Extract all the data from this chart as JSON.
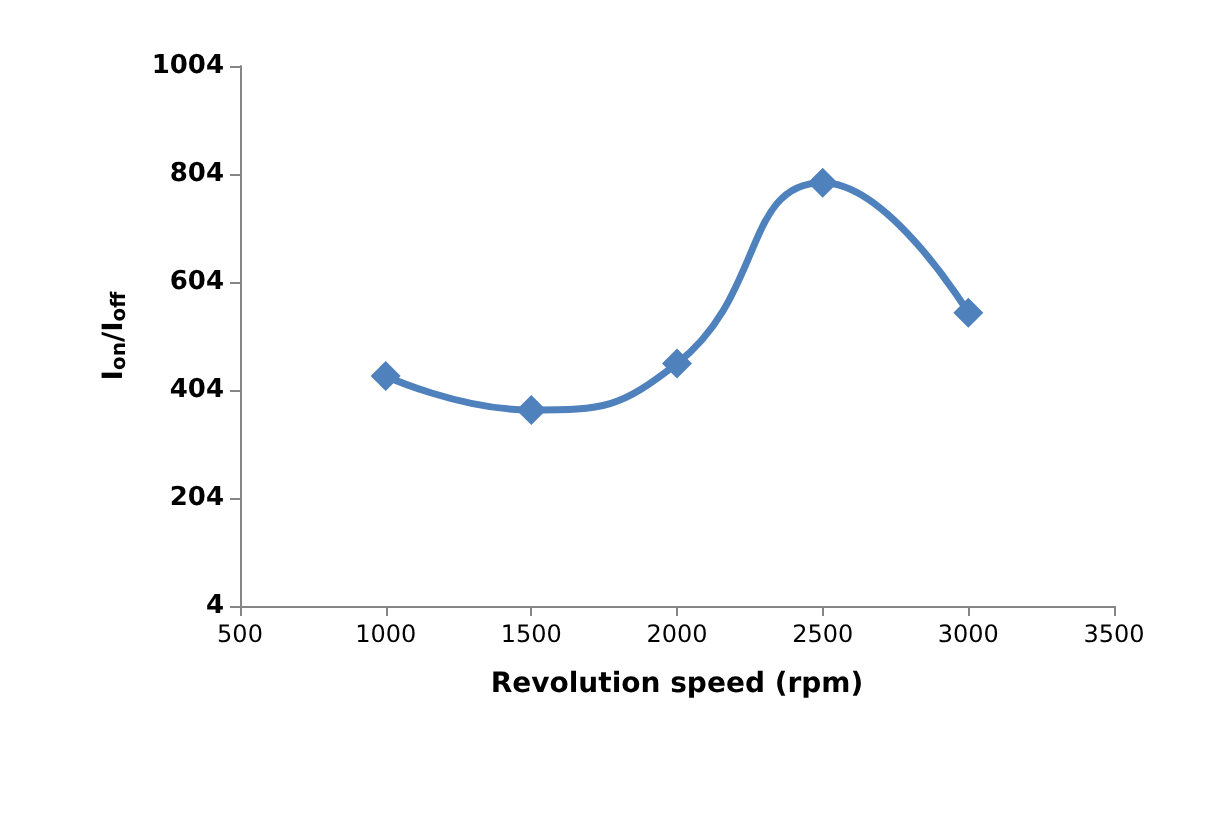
{
  "chart_data": {
    "type": "line",
    "xlabel": "Revolution speed (rpm)",
    "ylabel": "I$_{on}$/I$_{off}$",
    "x": [
      1000,
      1500,
      2000,
      2500,
      3000
    ],
    "series": [
      {
        "color": "#4f81bd",
        "values": [
          430,
          367,
          453,
          788,
          547
        ]
      }
    ],
    "xlim": [
      500,
      3500
    ],
    "xticks": [
      500,
      1000,
      1500,
      2000,
      2500,
      3000,
      3500
    ],
    "ylim": [
      4,
      1004
    ],
    "yticks": [
      4,
      204,
      404,
      604,
      804,
      1004
    ],
    "grid": false,
    "marker": "diamond",
    "line_style": "solid"
  }
}
